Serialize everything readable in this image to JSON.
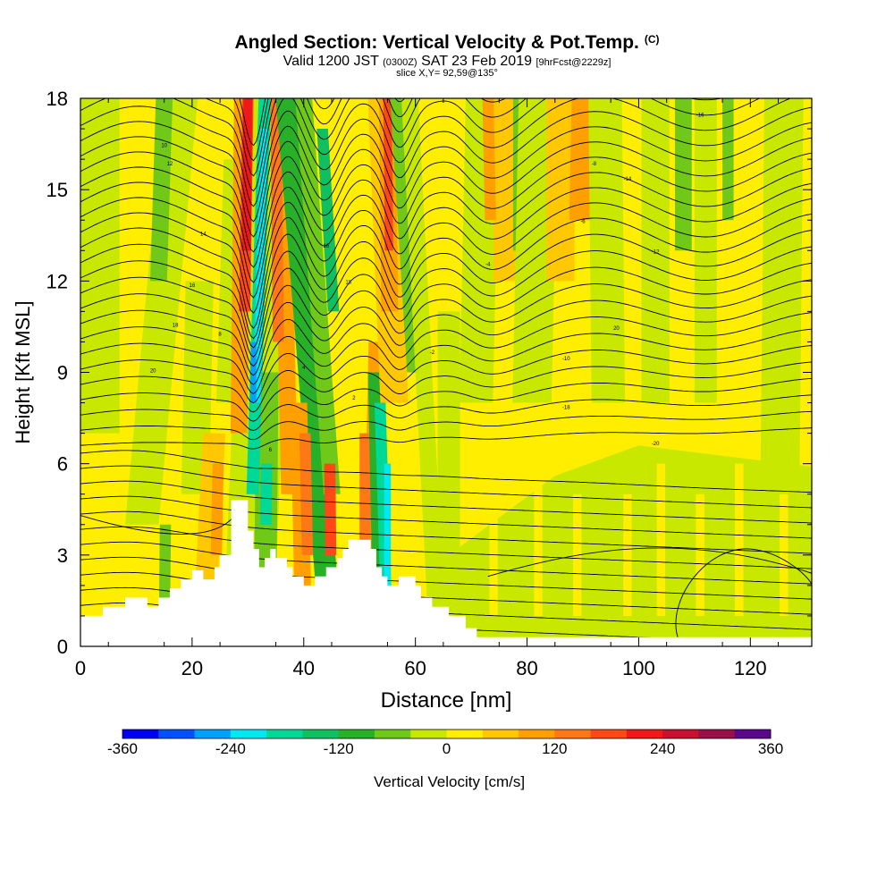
{
  "header": {
    "title": "Angled Section: Vertical Velocity & Pot.Temp.",
    "title_suffix": "(C)",
    "valid_prefix": "Valid 1200 JST",
    "valid_utc": "(0300Z)",
    "valid_date": "SAT 23 Feb 2019",
    "forecast": "[9hrFcst@2229z]",
    "slice": "slice X,Y= 92,59@135°"
  },
  "chart_data": {
    "type": "heatmap",
    "xlabel": "Distance [nm]",
    "ylabel": "Height [Kft MSL]",
    "xlim": [
      0,
      131
    ],
    "ylim": [
      0,
      18
    ],
    "xticks": [
      0,
      20,
      40,
      60,
      80,
      100,
      120
    ],
    "yticks": [
      0,
      3,
      6,
      9,
      12,
      15,
      18
    ],
    "colorbar": {
      "label": "Vertical Velocity [cm/s]",
      "ticks": [
        -360,
        -240,
        -120,
        0,
        120,
        240,
        360
      ],
      "levels": [
        -360,
        -330,
        -300,
        -270,
        -240,
        -210,
        -180,
        -150,
        -120,
        -90,
        -60,
        -30,
        0,
        30,
        60,
        90,
        120,
        150,
        180,
        210,
        240,
        270,
        300,
        330,
        360
      ],
      "colors": [
        "#0000f0",
        "#0050ff",
        "#00a0ff",
        "#00e8f0",
        "#00d898",
        "#10c060",
        "#28b028",
        "#70c818",
        "#c8e800",
        "#ffee00",
        "#ffc800",
        "#ffa000",
        "#ff7818",
        "#ff4818",
        "#f01818",
        "#c81030",
        "#981048",
        "#580888"
      ]
    },
    "terrain_kft": [
      [
        0,
        1.0
      ],
      [
        4,
        1.0
      ],
      [
        4,
        1.3
      ],
      [
        8,
        1.3
      ],
      [
        8,
        1.6
      ],
      [
        12,
        1.6
      ],
      [
        12,
        1.3
      ],
      [
        14,
        1.3
      ],
      [
        14,
        1.6
      ],
      [
        16,
        1.6
      ],
      [
        16,
        1.9
      ],
      [
        18,
        1.9
      ],
      [
        18,
        2.2
      ],
      [
        20,
        2.2
      ],
      [
        20,
        2.5
      ],
      [
        22,
        2.5
      ],
      [
        22,
        2.2
      ],
      [
        24,
        2.2
      ],
      [
        24,
        2.6
      ],
      [
        25,
        2.6
      ],
      [
        25,
        3.0
      ],
      [
        27,
        3.0
      ],
      [
        27,
        4.8
      ],
      [
        30,
        4.8
      ],
      [
        30,
        3.8
      ],
      [
        31,
        3.8
      ],
      [
        31,
        3.2
      ],
      [
        32,
        3.2
      ],
      [
        32,
        2.6
      ],
      [
        33,
        2.6
      ],
      [
        33,
        2.9
      ],
      [
        34,
        2.9
      ],
      [
        34,
        3.2
      ],
      [
        35,
        3.2
      ],
      [
        35,
        2.9
      ],
      [
        37,
        2.9
      ],
      [
        37,
        2.6
      ],
      [
        38,
        2.6
      ],
      [
        38,
        2.3
      ],
      [
        40,
        2.3
      ],
      [
        40,
        2.0
      ],
      [
        42,
        2.0
      ],
      [
        42,
        2.3
      ],
      [
        44,
        2.3
      ],
      [
        44,
        2.6
      ],
      [
        46,
        2.6
      ],
      [
        46,
        2.9
      ],
      [
        47,
        2.9
      ],
      [
        47,
        3.2
      ],
      [
        48,
        3.2
      ],
      [
        48,
        3.5
      ],
      [
        52,
        3.5
      ],
      [
        52,
        3.2
      ],
      [
        53,
        3.2
      ],
      [
        53,
        2.6
      ],
      [
        54,
        2.6
      ],
      [
        54,
        2.3
      ],
      [
        55,
        2.3
      ],
      [
        55,
        2.0
      ],
      [
        57,
        2.0
      ],
      [
        57,
        2.3
      ],
      [
        60,
        2.3
      ],
      [
        60,
        2.0
      ],
      [
        61,
        2.0
      ],
      [
        61,
        1.6
      ],
      [
        63,
        1.6
      ],
      [
        63,
        1.3
      ],
      [
        66,
        1.3
      ],
      [
        66,
        1.0
      ],
      [
        69,
        1.0
      ],
      [
        69,
        0.6
      ],
      [
        71,
        0.6
      ],
      [
        71,
        0.3
      ],
      [
        131,
        0.3
      ]
    ],
    "theta_labels": [
      "20",
      "18",
      "16",
      "14",
      "12",
      "10",
      "8",
      "6",
      "4",
      "2",
      "-2",
      "-4",
      "-6",
      "-8",
      "-10",
      "-12",
      "-14",
      "-16",
      "-18",
      "-20"
    ]
  }
}
